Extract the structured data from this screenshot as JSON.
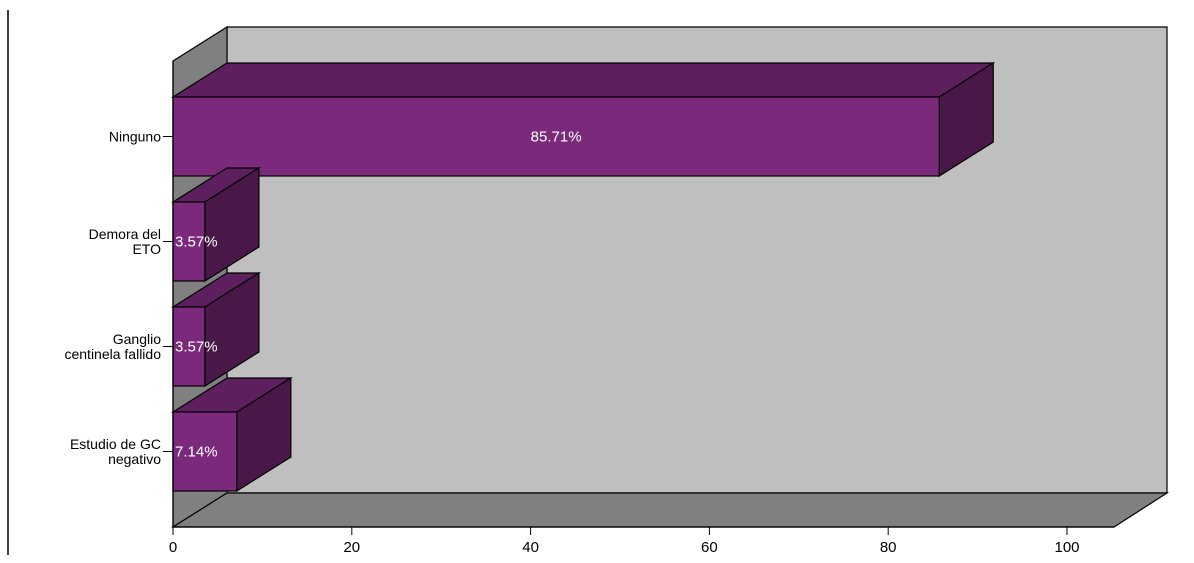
{
  "chart_data": {
    "type": "bar",
    "orientation": "horizontal",
    "style": "3d",
    "categories": [
      "Ninguno",
      "Demora del ETO",
      "Ganglio centinela fallido",
      "Estudio de GC negativo"
    ],
    "category_lines": [
      [
        "Ninguno"
      ],
      [
        "Demora del",
        "ETO"
      ],
      [
        "Ganglio",
        "centinela fallido"
      ],
      [
        "Estudio de GC",
        "negativo"
      ]
    ],
    "values": [
      85.71,
      3.57,
      3.57,
      7.14
    ],
    "data_labels": [
      "85.71%",
      "3.57%",
      "3.57%",
      "7.14%"
    ],
    "xlim": [
      0,
      100
    ],
    "xticks": [
      0,
      20,
      40,
      60,
      80,
      100
    ],
    "title": "",
    "xlabel": "",
    "ylabel": "",
    "grid": false,
    "legend": "none",
    "colors": {
      "bar_front": "#7b2a7b",
      "bar_top": "#5e1f5e",
      "bar_side": "#4a1848",
      "back_wall": "#bfbfbf",
      "left_wall": "#808080",
      "floor": "#808080",
      "outline": "#000000",
      "data_label": "#ffffff"
    }
  }
}
